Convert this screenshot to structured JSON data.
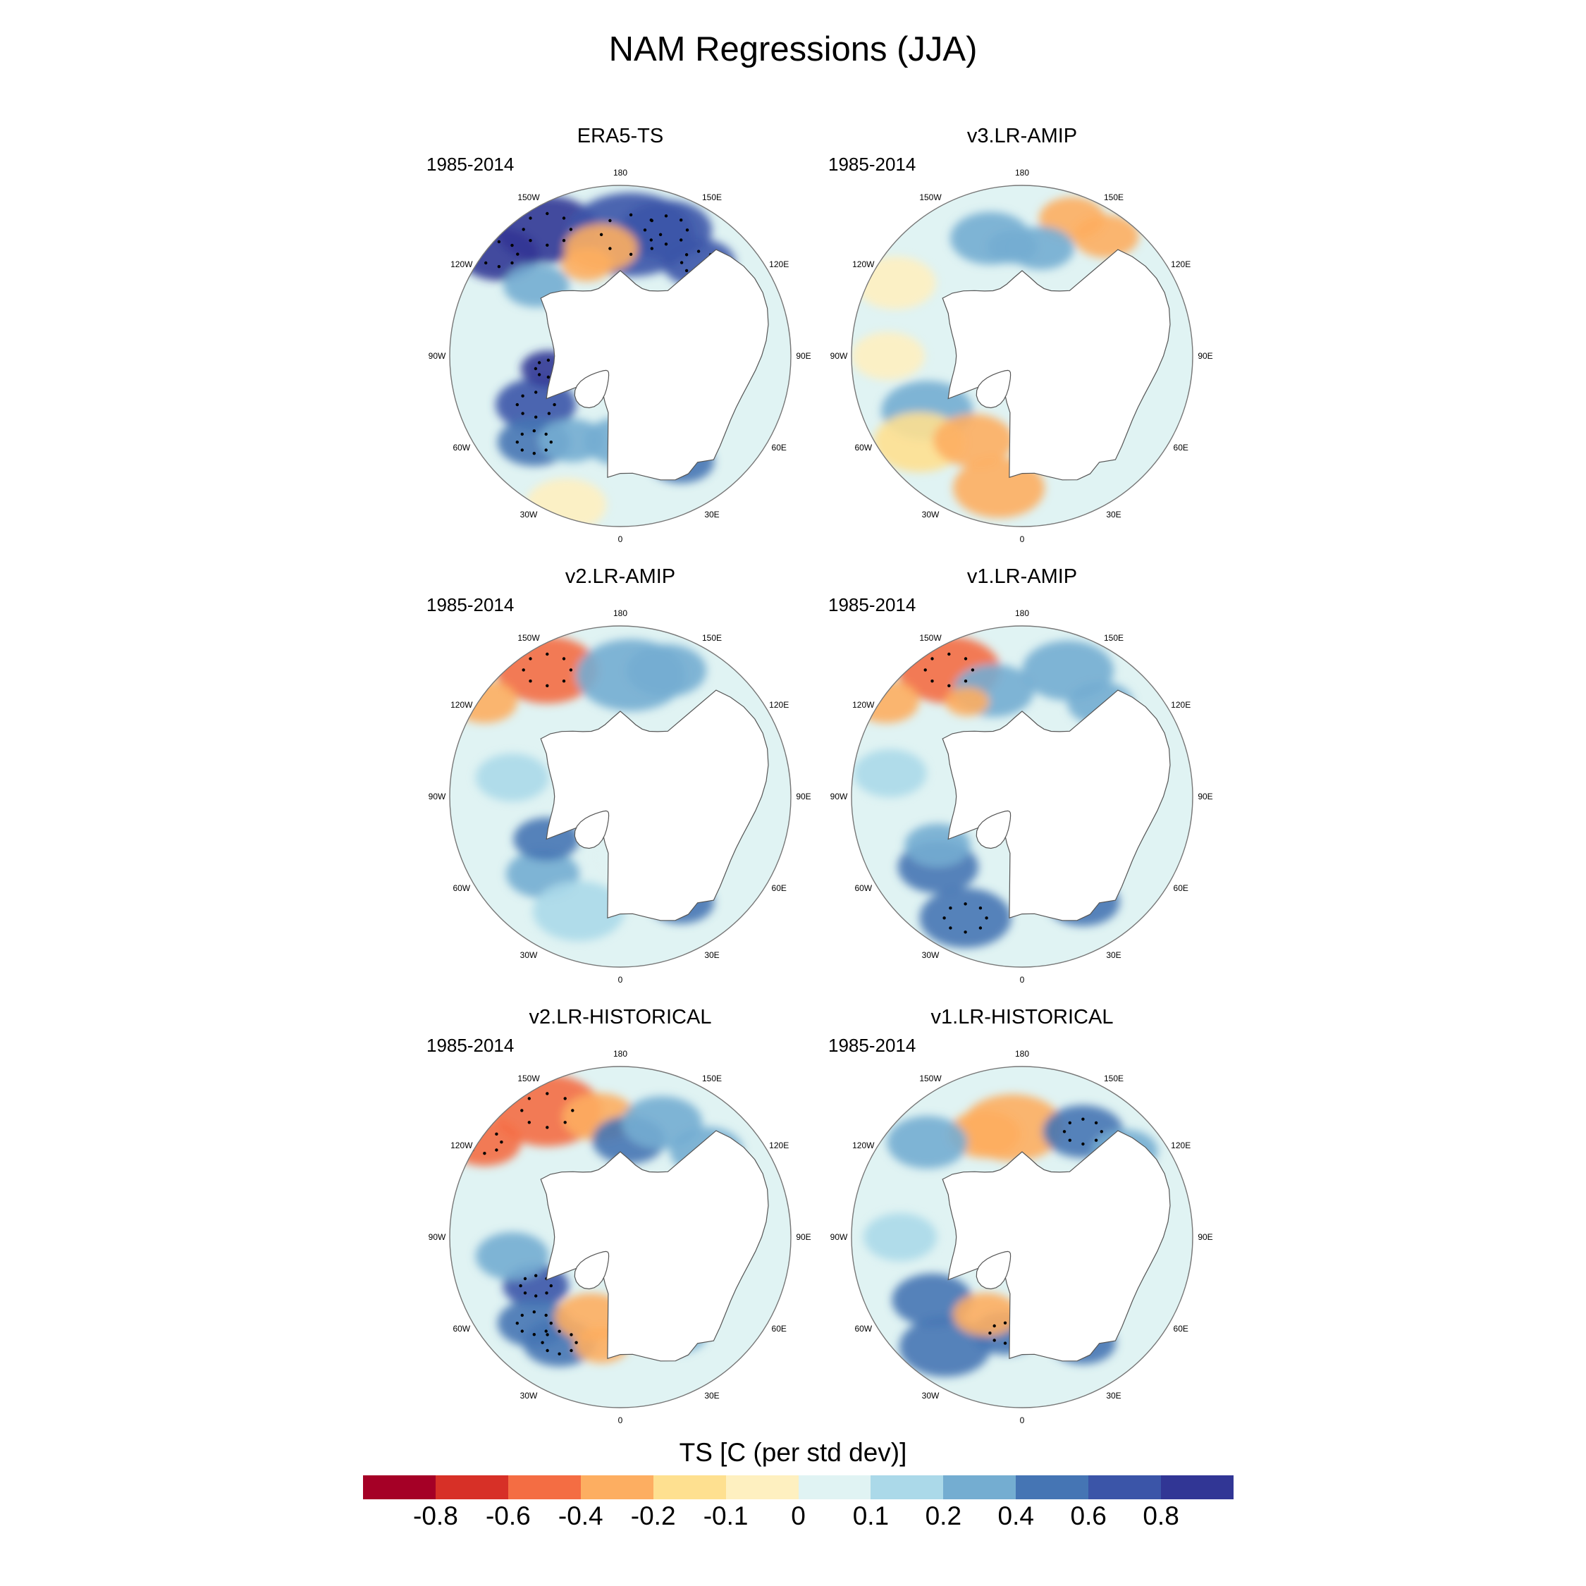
{
  "title": "NAM Regressions (JJA)",
  "period": "1985-2014",
  "longitude_labels": [
    "180",
    "150E",
    "120E",
    "90E",
    "60E",
    "30E",
    "0",
    "30W",
    "60W",
    "90W",
    "120W",
    "150W"
  ],
  "panels": [
    {
      "title": "ERA5-TS",
      "period": "1985-2014",
      "blobs": [
        [
          -150,
          30,
          28,
          0.9
        ],
        [
          -130,
          25,
          22,
          0.85
        ],
        [
          175,
          40,
          35,
          0.6
        ],
        [
          160,
          35,
          25,
          0.7
        ],
        [
          140,
          40,
          20,
          0.6
        ],
        [
          -170,
          45,
          20,
          -0.3
        ],
        [
          -160,
          50,
          14,
          -0.4
        ],
        [
          -60,
          50,
          22,
          0.6
        ],
        [
          -45,
          40,
          20,
          0.5
        ],
        [
          -80,
          60,
          15,
          0.8
        ],
        [
          -30,
          50,
          18,
          0.3
        ],
        [
          0,
          55,
          20,
          0.2
        ],
        [
          30,
          40,
          18,
          0.4
        ],
        [
          90,
          75,
          25,
          0.2
        ],
        [
          -130,
          45,
          18,
          0.2
        ],
        [
          -20,
          25,
          22,
          -0.1
        ],
        [
          60,
          55,
          15,
          -0.1
        ]
      ]
    },
    {
      "title": "v3.LR-AMIP",
      "period": "1985-2014",
      "blobs": [
        [
          -165,
          40,
          22,
          0.3
        ],
        [
          160,
          30,
          18,
          -0.35
        ],
        [
          145,
          30,
          18,
          -0.4
        ],
        [
          -175,
          45,
          14,
          0.2
        ],
        [
          -60,
          45,
          25,
          0.35
        ],
        [
          -50,
          35,
          25,
          -0.15
        ],
        [
          -30,
          50,
          22,
          -0.4
        ],
        [
          -10,
          35,
          25,
          -0.3
        ],
        [
          100,
          70,
          30,
          -0.1
        ],
        [
          -120,
          30,
          22,
          -0.1
        ],
        [
          20,
          60,
          18,
          0.05
        ],
        [
          170,
          45,
          18,
          0.2
        ],
        [
          -90,
          35,
          20,
          -0.1
        ]
      ]
    },
    {
      "title": "v2.LR-AMIP",
      "period": "1985-2014",
      "blobs": [
        [
          -150,
          30,
          28,
          -0.5
        ],
        [
          -125,
          22,
          18,
          -0.4
        ],
        [
          175,
          40,
          30,
          0.25
        ],
        [
          160,
          35,
          22,
          0.3
        ],
        [
          -45,
          45,
          20,
          0.3
        ],
        [
          -60,
          55,
          18,
          0.4
        ],
        [
          -20,
          40,
          25,
          0.15
        ],
        [
          30,
          40,
          18,
          0.4
        ],
        [
          60,
          55,
          20,
          -0.3
        ],
        [
          -100,
          45,
          20,
          0.1
        ],
        [
          120,
          60,
          20,
          0.1
        ],
        [
          10,
          65,
          18,
          0.05
        ]
      ]
    },
    {
      "title": "v1.LR-AMIP",
      "period": "1985-2014",
      "blobs": [
        [
          -150,
          30,
          28,
          -0.5
        ],
        [
          -125,
          22,
          18,
          -0.4
        ],
        [
          -165,
          45,
          22,
          0.3
        ],
        [
          -150,
          45,
          12,
          -0.3
        ],
        [
          160,
          35,
          25,
          0.35
        ],
        [
          140,
          40,
          18,
          0.3
        ],
        [
          -50,
          45,
          22,
          0.4
        ],
        [
          -25,
          35,
          25,
          0.5
        ],
        [
          -60,
          50,
          18,
          0.3
        ],
        [
          60,
          60,
          15,
          -0.5
        ],
        [
          30,
          40,
          20,
          0.4
        ],
        [
          90,
          70,
          25,
          0.1
        ],
        [
          -100,
          35,
          20,
          0.1
        ]
      ]
    },
    {
      "title": "v2.LR-HISTORICAL",
      "period": "1985-2014",
      "blobs": [
        [
          -150,
          30,
          30,
          -0.55
        ],
        [
          -125,
          22,
          20,
          -0.5
        ],
        [
          -170,
          40,
          20,
          -0.25
        ],
        [
          175,
          50,
          20,
          0.4
        ],
        [
          160,
          40,
          22,
          0.3
        ],
        [
          135,
          40,
          20,
          0.35
        ],
        [
          -60,
          50,
          18,
          0.6
        ],
        [
          -45,
          40,
          20,
          0.5
        ],
        [
          -30,
          40,
          20,
          0.5
        ],
        [
          -20,
          55,
          20,
          -0.4
        ],
        [
          -10,
          45,
          15,
          -0.3
        ],
        [
          30,
          45,
          18,
          0.3
        ],
        [
          60,
          55,
          18,
          -0.2
        ],
        [
          -80,
          45,
          20,
          0.2
        ]
      ]
    },
    {
      "title": "v1.LR-HISTORICAL",
      "period": "1985-2014",
      "blobs": [
        [
          -175,
          45,
          28,
          -0.4
        ],
        [
          -160,
          45,
          20,
          -0.35
        ],
        [
          -135,
          35,
          22,
          0.2
        ],
        [
          150,
          40,
          22,
          0.5
        ],
        [
          130,
          35,
          18,
          0.35
        ],
        [
          -55,
          45,
          22,
          0.4
        ],
        [
          -35,
          35,
          25,
          0.45
        ],
        [
          -10,
          50,
          18,
          0.5
        ],
        [
          -25,
          55,
          18,
          -0.25
        ],
        [
          45,
          70,
          20,
          -0.1
        ],
        [
          30,
          40,
          18,
          0.4
        ],
        [
          100,
          70,
          20,
          0.1
        ],
        [
          -90,
          40,
          20,
          0.1
        ]
      ]
    }
  ],
  "colorbar": {
    "title": "TS [C (per std dev)]",
    "labels": [
      "-0.8",
      "-0.6",
      "-0.4",
      "-0.2",
      "-0.1",
      "0",
      "0.1",
      "0.2",
      "0.4",
      "0.6",
      "0.8"
    ],
    "levels": [
      -0.8,
      -0.6,
      -0.4,
      -0.2,
      -0.1,
      0,
      0.1,
      0.2,
      0.4,
      0.6,
      0.8
    ],
    "colors": [
      "#a50026",
      "#d73027",
      "#f46d43",
      "#fdae61",
      "#fee090",
      "#fef0c0",
      "#e0f3f3",
      "#abd9e9",
      "#74add1",
      "#4575b4",
      "#3b55a8",
      "#313695"
    ]
  }
}
